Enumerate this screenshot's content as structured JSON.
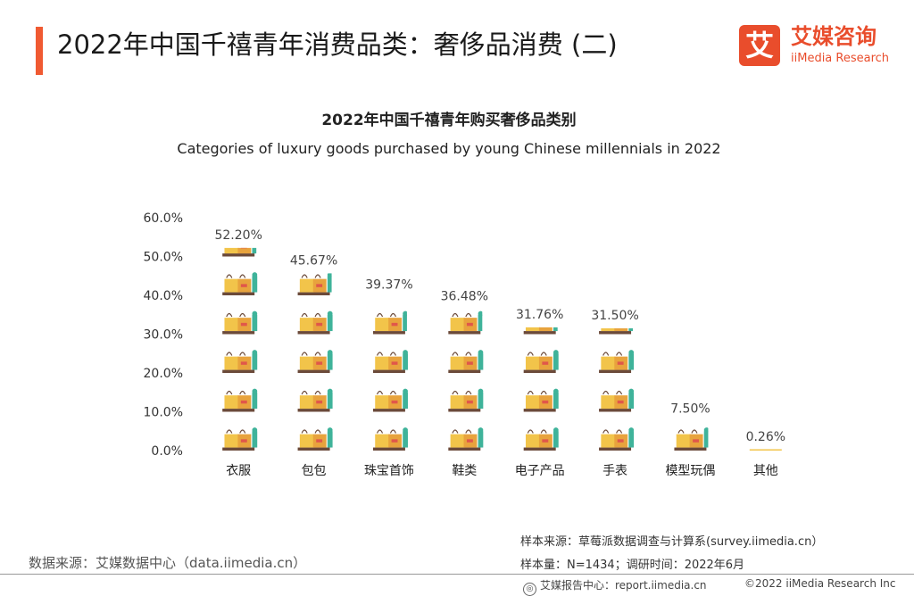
{
  "header": {
    "title": "2022年中国千禧青年消费品类：奢侈品消费 (二)",
    "accent_color": "#f05a32"
  },
  "brand": {
    "icon_glyph": "艾",
    "name_cn": "艾媒咨询",
    "name_en": "iiMedia Research",
    "color": "#e94d2c"
  },
  "chart_data": {
    "type": "bar",
    "title": "2022年中国千禧青年购买奢侈品类别",
    "subtitle": "Categories of luxury goods purchased by young Chinese millennials in 2022",
    "categories": [
      "衣服",
      "包包",
      "珠宝首饰",
      "鞋类",
      "电子产品",
      "手表",
      "模型玩偶",
      "其他"
    ],
    "values": [
      52.2,
      45.67,
      39.37,
      36.48,
      31.76,
      31.5,
      7.5,
      0.26
    ],
    "value_labels": [
      "52.20%",
      "45.67%",
      "39.37%",
      "36.48%",
      "31.76%",
      "31.50%",
      "7.50%",
      "0.26%"
    ],
    "ylim": [
      0,
      60
    ],
    "yticks": [
      "0.0%",
      "10.0%",
      "20.0%",
      "30.0%",
      "40.0%",
      "50.0%",
      "60.0%"
    ],
    "ytick_values": [
      0,
      10,
      20,
      30,
      40,
      50,
      60
    ],
    "grid": true,
    "bar_style": "stacked-shopping-bag-icons",
    "icon_colors": {
      "bag_yellow": "#f2c44a",
      "bag_orange": "#e8a33d",
      "shelf": "#6b4a3a",
      "teal": "#3fb39a",
      "red": "#e0574a"
    }
  },
  "footer": {
    "data_source": "数据来源：艾媒数据中心（data.iimedia.cn）",
    "sample_source": "样本来源：草莓派数据调查与计算系(survey.iimedia.cn）",
    "sample_size": "样本量：N=1434；调研时间：2022年6月",
    "report_site": "艾媒报告中心：report.iimedia.cn",
    "copyright_glyph": "©",
    "copyright": "©2022 iiMedia Research Inc"
  }
}
